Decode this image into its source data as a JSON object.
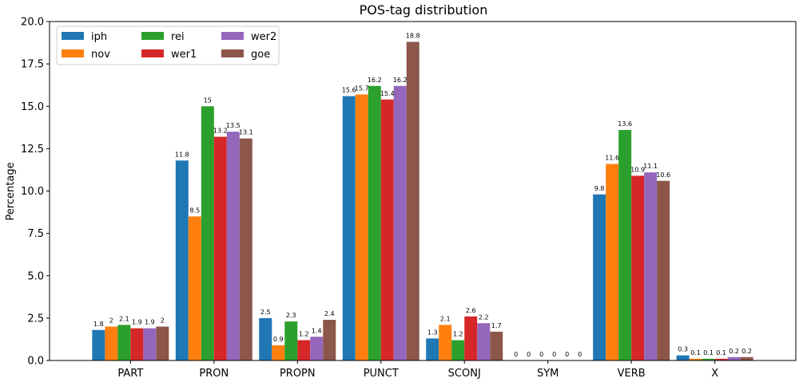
{
  "chart_data": {
    "type": "bar",
    "title": "POS-tag distribution",
    "xlabel": "",
    "ylabel": "Percentage",
    "ylim": [
      0,
      20
    ],
    "yticks": [
      "0.0",
      "2.5",
      "5.0",
      "7.5",
      "10.0",
      "12.5",
      "15.0",
      "17.5",
      "20.0"
    ],
    "grid": false,
    "legend_position": "top-left",
    "legend_columns": 3,
    "categories": [
      "PART",
      "PRON",
      "PROPN",
      "PUNCT",
      "SCONJ",
      "SYM",
      "VERB",
      "X"
    ],
    "series": [
      {
        "name": "iph",
        "color": "#1f77b4",
        "values": [
          1.8,
          11.8,
          2.5,
          15.6,
          1.3,
          0,
          9.8,
          0.3
        ]
      },
      {
        "name": "nov",
        "color": "#ff7f0e",
        "values": [
          2,
          8.5,
          0.9,
          15.7,
          2.1,
          0,
          11.6,
          0.1
        ]
      },
      {
        "name": "rei",
        "color": "#2ca02c",
        "values": [
          2.1,
          15,
          2.3,
          16.2,
          1.2,
          0,
          13.6,
          0.1
        ]
      },
      {
        "name": "wer1",
        "color": "#d62728",
        "values": [
          1.9,
          13.2,
          1.2,
          15.4,
          2.6,
          0,
          10.9,
          0.1
        ]
      },
      {
        "name": "wer2",
        "color": "#9467bd",
        "values": [
          1.9,
          13.5,
          1.4,
          16.2,
          2.2,
          0,
          11.1,
          0.2
        ]
      },
      {
        "name": "goe",
        "color": "#8c564b",
        "values": [
          2,
          13.1,
          2.4,
          18.8,
          1.7,
          0,
          10.6,
          0.2
        ]
      }
    ]
  }
}
